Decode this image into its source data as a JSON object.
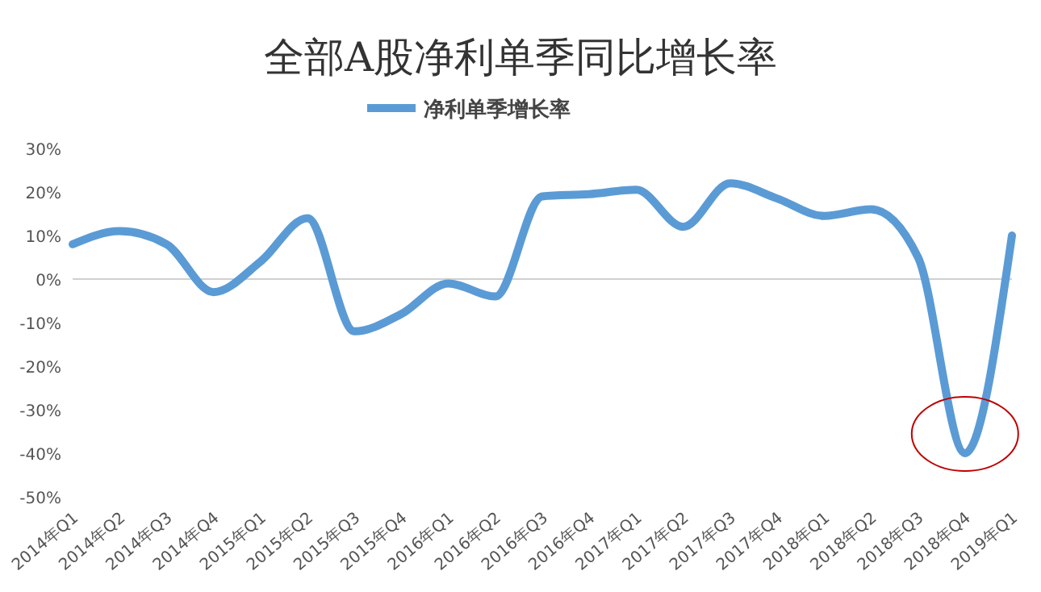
{
  "chart_data": {
    "type": "line",
    "title": "全部A股净利单季同比增长率",
    "categories": [
      "2014年Q1",
      "2014年Q2",
      "2014年Q3",
      "2014年Q4",
      "2015年Q1",
      "2015年Q2",
      "2015年Q3",
      "2015年Q4",
      "2016年Q1",
      "2016年Q2",
      "2016年Q3",
      "2016年Q4",
      "2017年Q1",
      "2017年Q2",
      "2017年Q3",
      "2017年Q4",
      "2018年Q1",
      "2018年Q2",
      "2018年Q3",
      "2018年Q4",
      "2019年Q1"
    ],
    "series": [
      {
        "name": "净利单季增长率",
        "color": "#5b9bd5",
        "values": [
          8,
          11,
          8,
          -3,
          4,
          14,
          -12,
          -8,
          -1,
          -4,
          19,
          19.5,
          20.5,
          12,
          22,
          18.5,
          14.5,
          16,
          5,
          -40,
          10
        ]
      }
    ],
    "ylim": [
      -50,
      30
    ],
    "yticks": [
      {
        "value": -50,
        "label": "-50%"
      },
      {
        "value": -40,
        "label": "-40%"
      },
      {
        "value": -30,
        "label": "-30%"
      },
      {
        "value": -20,
        "label": "-20%"
      },
      {
        "value": -10,
        "label": "-10%"
      },
      {
        "value": 0,
        "label": "0%"
      },
      {
        "value": 10,
        "label": "10%"
      },
      {
        "value": 20,
        "label": "20%"
      },
      {
        "value": 30,
        "label": "30%"
      }
    ],
    "ref_lines": [
      {
        "axis": "y",
        "value": 0,
        "color": "#d0d0d0"
      }
    ],
    "grid": false,
    "legend": "top",
    "marker": "none",
    "line_style": "solid"
  }
}
